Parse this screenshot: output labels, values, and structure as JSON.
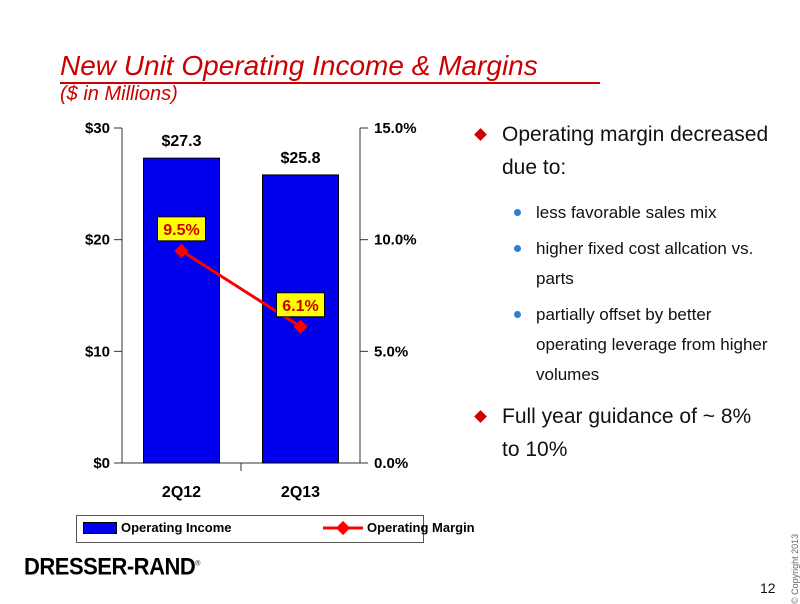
{
  "slide": {
    "title": "New Unit Operating Income & Margins",
    "subtitle": "($ in Millions)",
    "page_number": "12",
    "copyright": "© Copyright 2013",
    "logo_text": "DRESSER-RAND",
    "logo_mark": "®"
  },
  "colors": {
    "accent": "#cc0000",
    "bar_fill": "#0000ee",
    "line": "#ff0000",
    "label_bg": "#ffff00",
    "bullet_dot": "#2a7fd6"
  },
  "chart_data": {
    "type": "bar",
    "title": "",
    "categories": [
      "2Q12",
      "2Q13"
    ],
    "series": [
      {
        "name": "Operating Income",
        "type": "bar",
        "axis": "left",
        "values": [
          27.3,
          25.8
        ],
        "labels": [
          "$27.3",
          "$25.8"
        ]
      },
      {
        "name": "Operating Margin",
        "type": "line",
        "axis": "right",
        "values": [
          9.5,
          6.1
        ],
        "labels": [
          "9.5%",
          "6.1%"
        ]
      }
    ],
    "y_left": {
      "range": [
        0,
        30
      ],
      "ticks": [
        0,
        10,
        20,
        30
      ],
      "tick_labels": [
        "$0",
        "$10",
        "$20",
        "$30"
      ]
    },
    "y_right": {
      "range": [
        0,
        15
      ],
      "ticks": [
        0,
        5,
        10,
        15
      ],
      "tick_labels": [
        "0.0%",
        "5.0%",
        "10.0%",
        "15.0%"
      ]
    },
    "grid": false,
    "legend_position": "bottom"
  },
  "bullets": [
    {
      "text": "Operating margin decreased due to:",
      "sub": [
        "less favorable sales mix",
        "higher fixed cost allcation vs. parts",
        "partially offset by better operating leverage from higher volumes"
      ]
    },
    {
      "text": "Full year guidance of ~ 8% to 10%",
      "sub": []
    }
  ]
}
